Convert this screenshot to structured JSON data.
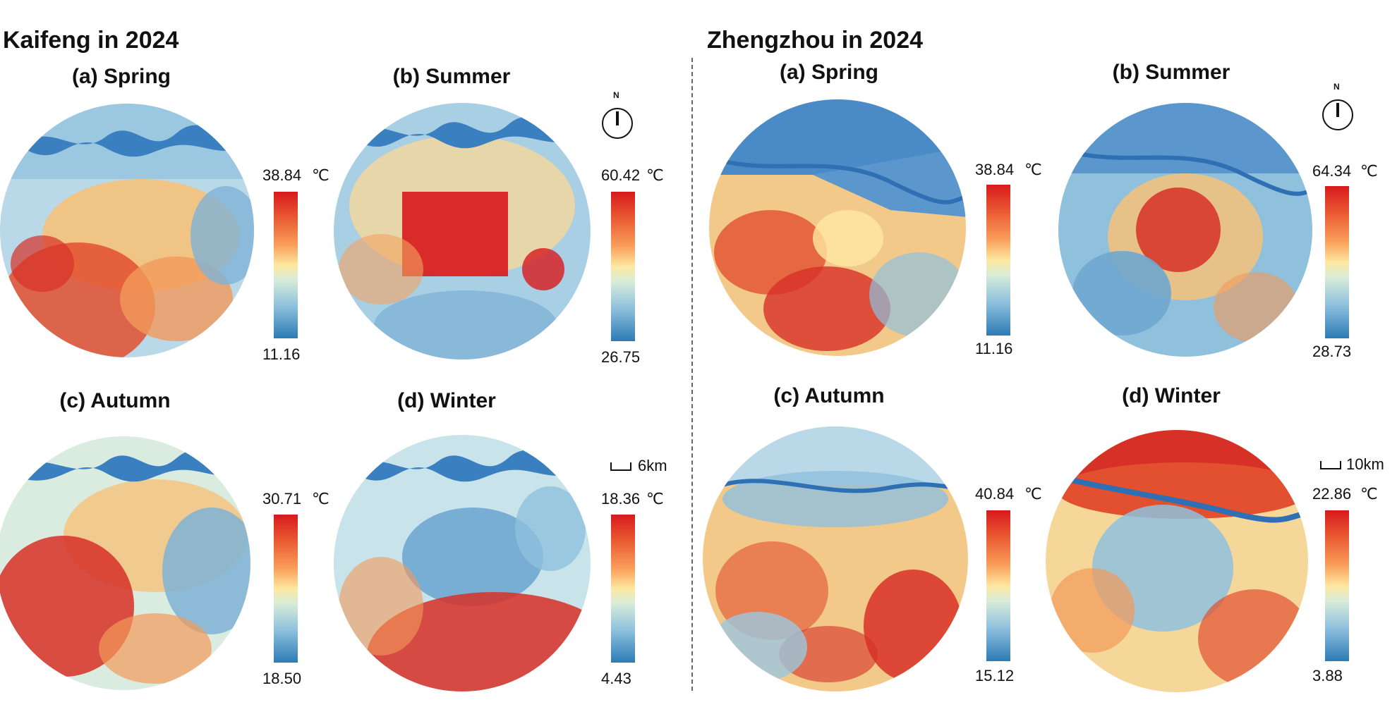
{
  "unit": "℃",
  "north_label": "N",
  "kaifeng": {
    "title": "Kaifeng in 2024",
    "scale": "6km",
    "panels": [
      {
        "title": "(a) Spring",
        "max": "38.84",
        "min": "11.16"
      },
      {
        "title": "(b) Summer",
        "max": "60.42",
        "min": "26.75"
      },
      {
        "title": "(c) Autumn",
        "max": "30.71",
        "min": "18.50"
      },
      {
        "title": "(d) Winter",
        "max": "18.36",
        "min": "4.43"
      }
    ]
  },
  "zhengzhou": {
    "title": "Zhengzhou in 2024",
    "scale": "10km",
    "panels": [
      {
        "title": "(a) Spring",
        "max": "38.84",
        "min": "11.16"
      },
      {
        "title": "(b) Summer",
        "max": "64.34",
        "min": "28.73"
      },
      {
        "title": "(c) Autumn",
        "max": "40.84",
        "min": "15.12"
      },
      {
        "title": "(d) Winter",
        "max": "22.86",
        "min": "3.88"
      }
    ]
  },
  "colors": {
    "hot": "#d7191c",
    "warm": "#f99d59",
    "mid": "#fee8a0",
    "cool": "#8fc1dd",
    "cold": "#2c7bb6",
    "river": "#3a7fc0"
  }
}
